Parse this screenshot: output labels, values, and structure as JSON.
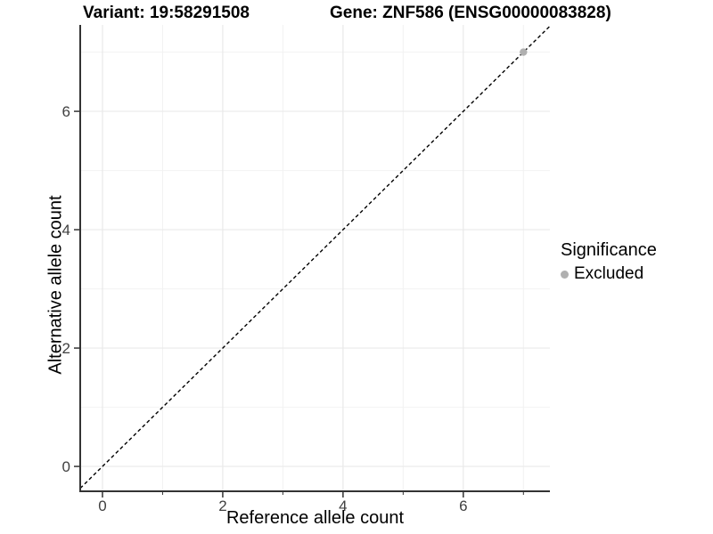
{
  "header": {
    "variant_title": "Variant: 19:58291508",
    "gene_title": "Gene: ZNF586 (ENSG00000083828)"
  },
  "legend": {
    "title": "Significance",
    "items": [
      {
        "label": "Excluded",
        "color": "#b0b0b0"
      }
    ]
  },
  "chart_data": {
    "type": "scatter",
    "title": "Variant: 19:58291508   Gene: ZNF586 (ENSG00000083828)",
    "xlabel": "Reference allele count",
    "ylabel": "Alternative allele count",
    "xlim": [
      -0.37,
      7.44
    ],
    "ylim": [
      -0.42,
      7.46
    ],
    "xticks": [
      0,
      2,
      4,
      6
    ],
    "yticks": [
      0,
      2,
      4,
      6
    ],
    "minor_breaks": [
      1,
      3,
      5,
      7
    ],
    "grid": true,
    "legend_position": "right",
    "reference_line": {
      "type": "identity",
      "equation": "y = x",
      "style": "dashed",
      "color": "#000000"
    },
    "series": [
      {
        "name": "Excluded",
        "color": "#b0b0b0",
        "points": [
          [
            7,
            7
          ]
        ]
      }
    ],
    "style": {
      "axis_line_color": "#333333",
      "tick_label_color": "#404040",
      "grid_major_color": "#e9e9e9",
      "grid_minor_color": "#f2f2f2",
      "background": "#ffffff"
    }
  }
}
